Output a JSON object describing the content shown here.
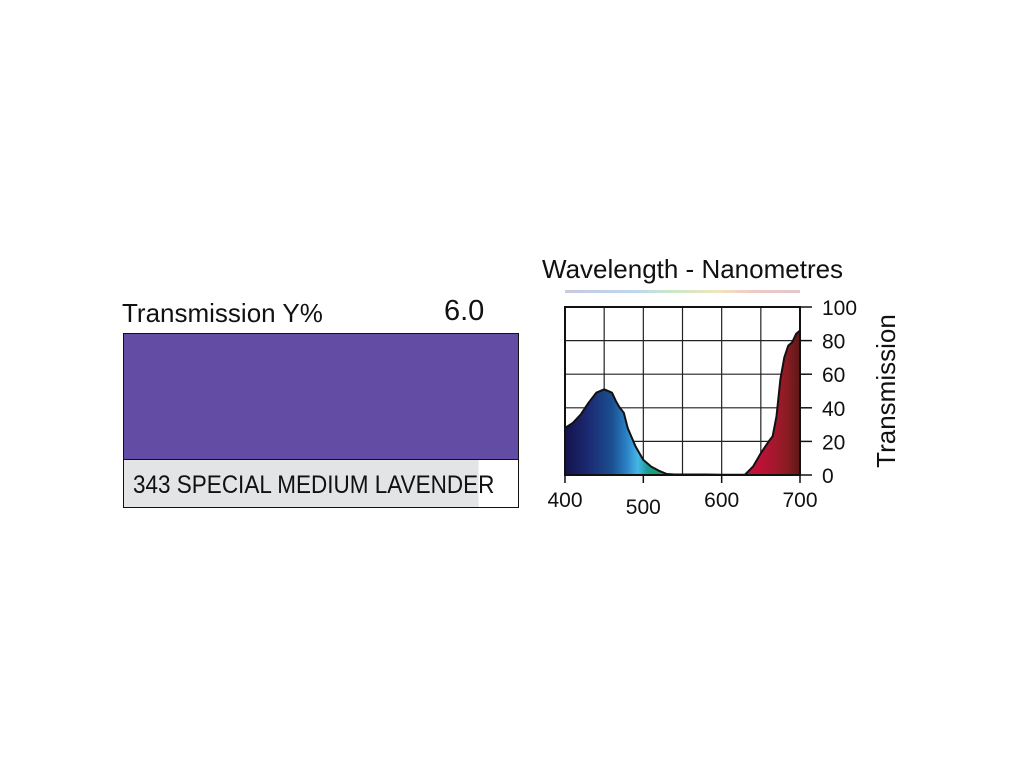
{
  "swatch": {
    "transmission_label": "Transmission Y%",
    "transmission_value": "6.0",
    "name": "343 SPECIAL MEDIUM LAVENDER",
    "color": "#634ca4"
  },
  "chart_data": {
    "type": "area",
    "title": "Wavelength - Nanometres",
    "xlabel": "",
    "ylabel": "Transmission",
    "xlim": [
      400,
      700
    ],
    "ylim": [
      0,
      100
    ],
    "grid": true,
    "x_ticks": [
      "400",
      "500",
      "600",
      "700"
    ],
    "y_ticks": [
      "0",
      "20",
      "40",
      "60",
      "80",
      "100"
    ],
    "series": [
      {
        "x": [
          400,
          410,
          420,
          430,
          440,
          450,
          460,
          465,
          470,
          475,
          480,
          490,
          500,
          510,
          520,
          530,
          540,
          560,
          580,
          600,
          620,
          630
        ],
        "y": [
          28,
          31,
          36,
          43,
          49,
          51,
          49,
          44,
          40,
          37,
          28,
          17,
          9,
          5,
          2.5,
          0.6,
          0.3,
          0.3,
          0.3,
          0.2,
          0.2,
          0.2
        ]
      },
      {
        "x": [
          630,
          640,
          650,
          660,
          665,
          670,
          675,
          680,
          685,
          690,
          695,
          700
        ],
        "y": [
          0.3,
          5,
          13,
          20,
          23,
          35,
          57,
          70,
          77,
          79,
          84,
          86
        ]
      }
    ]
  }
}
